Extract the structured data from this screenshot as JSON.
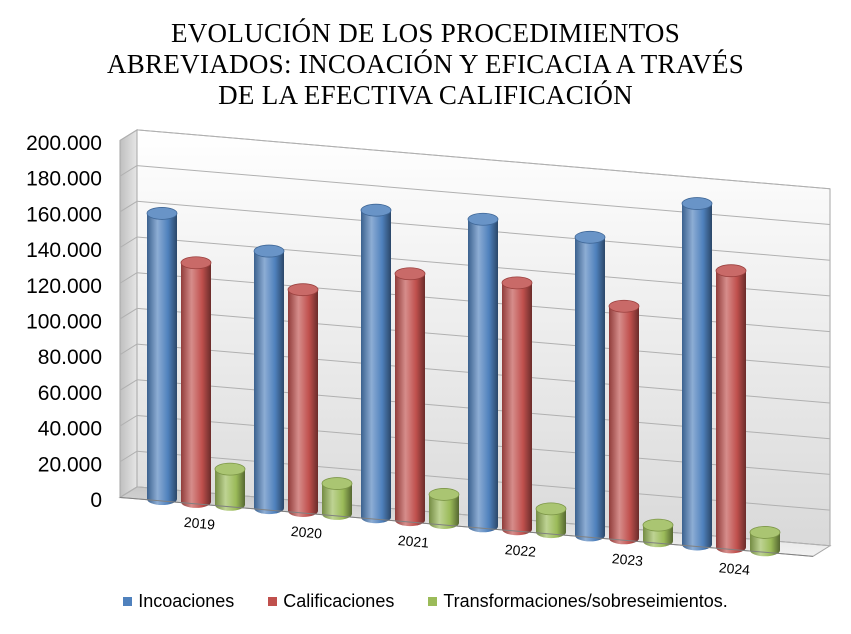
{
  "chart_data": {
    "type": "bar",
    "title_lines": [
      "EVOLUCIÓN DE LOS PROCEDIMIENTOS",
      "ABREVIADOS: INCOACIÓN Y EFICACIA A TRAVÉS",
      "DE LA EFECTIVA CALIFICACIÓN"
    ],
    "categories": [
      "2019",
      "2020",
      "2021",
      "2022",
      "2023",
      "2024"
    ],
    "series": [
      {
        "name": "Incoaciones",
        "color": "#4F81BD",
        "values": [
          160000,
          144000,
          172000,
          172000,
          167000,
          191000
        ]
      },
      {
        "name": "Calificaciones",
        "color": "#C0504D",
        "values": [
          134000,
          124000,
          138000,
          138000,
          130000,
          155000
        ]
      },
      {
        "name": "Transformaciones/sobreseimientos.",
        "color": "#9BBB59",
        "values": [
          20000,
          17000,
          16000,
          13000,
          9000,
          10000
        ]
      }
    ],
    "ylim": [
      0,
      200000
    ],
    "yticks": [
      "0",
      "20.000",
      "40.000",
      "60.000",
      "80.000",
      "100.000",
      "120.000",
      "140.000",
      "160.000",
      "180.000",
      "200.000"
    ],
    "grid": true,
    "legend_position": "bottom",
    "style": "3d-clustered-cylinder"
  }
}
